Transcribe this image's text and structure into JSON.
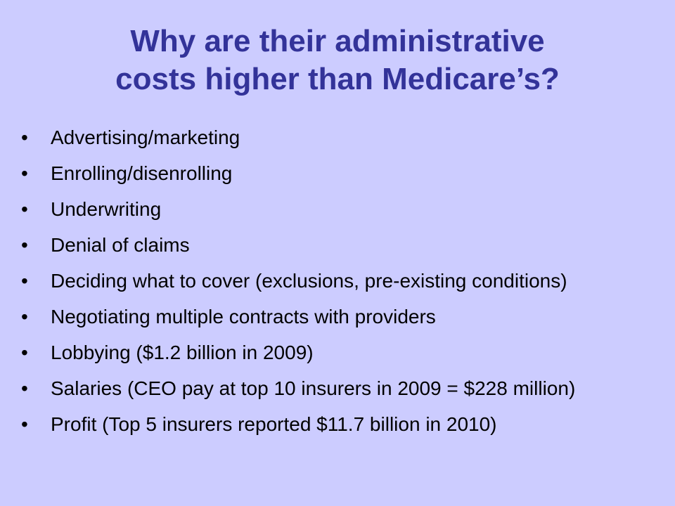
{
  "slide": {
    "title_line1": "Why are their administrative",
    "title_line2": "costs higher than Medicare’s?",
    "bullets": [
      "Advertising/marketing",
      "Enrolling/disenrolling",
      "Underwriting",
      "Denial of claims",
      "Deciding what to cover (exclusions, pre-existing conditions)",
      "Negotiating multiple contracts with providers",
      "Lobbying ($1.2 billion in 2009)",
      "Salaries (CEO pay at top 10 insurers in 2009 = $228 million)",
      "Profit (Top 5 insurers reported $11.7 billion in 2010)"
    ]
  },
  "colors": {
    "background": "#ccccff",
    "title": "#333399",
    "text": "#000000"
  }
}
